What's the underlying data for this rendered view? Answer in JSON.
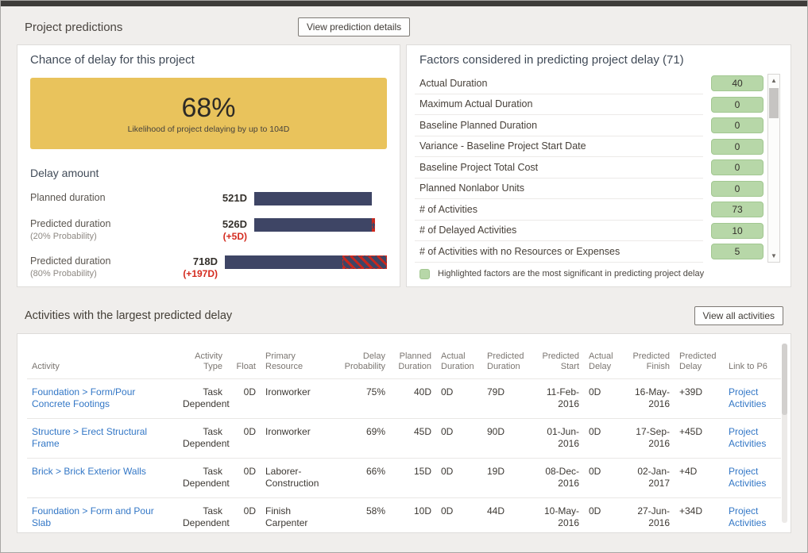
{
  "page": {
    "title": "Project predictions",
    "view_details_button": "View prediction details"
  },
  "chance_panel": {
    "title": "Chance of delay for this project",
    "likelihood_pct": "68%",
    "likelihood_caption": "Likelihood of project delaying by up to 104D",
    "delay_amount_title": "Delay amount",
    "bars": [
      {
        "label": "Planned duration",
        "sublabel": "",
        "value": "521D",
        "delta": "",
        "days": 521
      },
      {
        "label": "Predicted duration",
        "sublabel": "(20% Probability)",
        "value": "526D",
        "delta": "(+5D)",
        "days": 526
      },
      {
        "label": "Predicted duration",
        "sublabel": "(80% Probability)",
        "value": "718D",
        "delta": "(+197D)",
        "days": 718
      }
    ]
  },
  "factors_panel": {
    "title": "Factors considered in predicting project delay (71)",
    "rows": [
      {
        "label": "Actual Duration",
        "value": "40"
      },
      {
        "label": "Maximum Actual Duration",
        "value": "0"
      },
      {
        "label": "Baseline Planned Duration",
        "value": "0"
      },
      {
        "label": "Variance - Baseline Project Start Date",
        "value": "0"
      },
      {
        "label": "Baseline Project Total Cost",
        "value": "0"
      },
      {
        "label": "Planned Nonlabor Units",
        "value": "0"
      },
      {
        "label": "# of Activities",
        "value": "73"
      },
      {
        "label": "# of Delayed Activities",
        "value": "10"
      },
      {
        "label": "# of Activities with no Resources or Expenses",
        "value": "5"
      }
    ],
    "legend": "Highlighted factors are the most significant in predicting project delay"
  },
  "activities": {
    "title": "Activities with the largest predicted delay",
    "view_all_button": "View all activities",
    "columns": [
      "Activity",
      "Activity Type",
      "Float",
      "Primary Resource",
      "Delay Probability",
      "Planned Duration",
      "Actual Duration",
      "Predicted Duration",
      "Predicted Start",
      "Actual Delay",
      "Predicted Finish",
      "Predicted Delay",
      "Link to P6"
    ],
    "rows": [
      [
        "Foundation > Form/Pour Concrete Footings",
        "Task Dependent",
        "0D",
        "Ironworker",
        "75%",
        "40D",
        "0D",
        "79D",
        "11-Feb-2016",
        "0D",
        "16-May-2016",
        "+39D",
        "Project Activities"
      ],
      [
        "Structure > Erect Structural Frame",
        "Task Dependent",
        "0D",
        "Ironworker",
        "69%",
        "45D",
        "0D",
        "90D",
        "01-Jun-2016",
        "0D",
        "17-Sep-2016",
        "+45D",
        "Project Activities"
      ],
      [
        "Brick > Brick Exterior Walls",
        "Task Dependent",
        "0D",
        "Laborer-Construction",
        "66%",
        "15D",
        "0D",
        "19D",
        "08-Dec-2016",
        "0D",
        "02-Jan-2017",
        "+4D",
        "Project Activities"
      ],
      [
        "Foundation > Form and Pour Slab",
        "Task Dependent",
        "0D",
        "Finish Carpenter",
        "58%",
        "10D",
        "0D",
        "44D",
        "10-May-2016",
        "0D",
        "27-Jun-2016",
        "+34D",
        "Project Activities"
      ]
    ]
  },
  "icons": {
    "scroll_up": "▲",
    "scroll_down": "▼"
  },
  "colors": {
    "likelihood_yellow": "#E9C35C",
    "bar_navy": "#3E4565",
    "delta_red": "#D42B1F",
    "factor_green": "#B7D7A8",
    "link_blue": "#3377C6"
  }
}
